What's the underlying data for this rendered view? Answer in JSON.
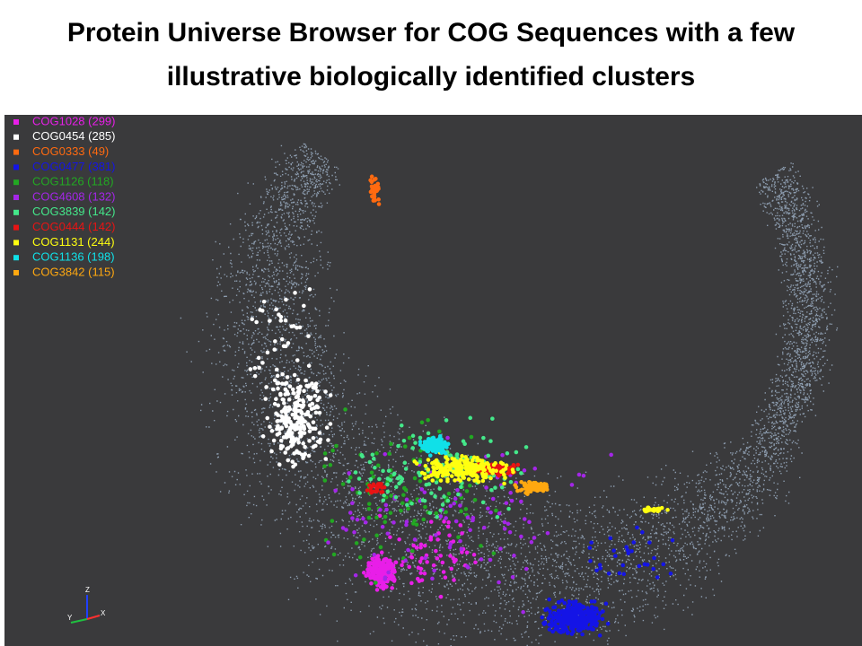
{
  "header": {
    "title": "Protein Universe Browser for COG Sequences with a few illustrative biologically identified clusters"
  },
  "legend": [
    {
      "label": "COG1028 (299)",
      "color": "#e81ee8"
    },
    {
      "label": "COG0454 (285)",
      "color": "#ffffff"
    },
    {
      "label": "COG0333 (49)",
      "color": "#ff6a10"
    },
    {
      "label": "COG0477 (381)",
      "color": "#1414e6"
    },
    {
      "label": "COG1126 (118)",
      "color": "#22a822"
    },
    {
      "label": "COG4608 (132)",
      "color": "#a426e8"
    },
    {
      "label": "COG3839 (142)",
      "color": "#44e88a"
    },
    {
      "label": "COG0444 (142)",
      "color": "#e81414"
    },
    {
      "label": "COG1131 (244)",
      "color": "#ffff10"
    },
    {
      "label": "COG1136 (198)",
      "color": "#10e0e8"
    },
    {
      "label": "COG3842 (115)",
      "color": "#ffa810"
    }
  ],
  "axes_gizmo": {
    "z": "Z",
    "y": "Y",
    "x": "X"
  }
}
